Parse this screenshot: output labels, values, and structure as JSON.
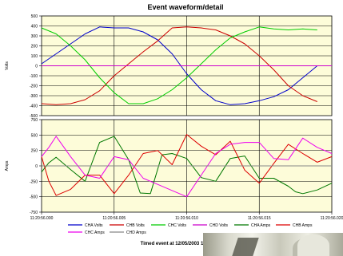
{
  "chart_data": {
    "type": "line",
    "title": "Event waveform/detail",
    "footer": "Timed event at 12/05/2003 11:20:56.000",
    "x_ticks": [
      "11:20:56.000",
      "11:20:56.005",
      "11:20:56.010",
      "11:20:56.015",
      "11:20:56.020"
    ],
    "xlim": [
      0,
      20
    ],
    "x_unit": "ms after 11:20:56.000",
    "grid": true,
    "legend_position": "bottom",
    "panels": [
      {
        "ylabel": "Volts",
        "ylim": [
          -500,
          500
        ],
        "y_ticks": [
          -500,
          -400,
          -300,
          -200,
          -100,
          0,
          100,
          200,
          300,
          400,
          500
        ],
        "series": [
          {
            "name": "CHA Volts",
            "color": "#0000cc",
            "x": [
              0,
              1,
              2,
              3,
              4,
              5,
              6,
              7,
              8,
              9,
              10,
              11,
              12,
              13,
              14,
              15,
              16,
              17,
              18,
              19,
              20
            ],
            "y": [
              20,
              120,
              220,
              320,
              390,
              380,
              380,
              340,
              260,
              120,
              -80,
              -240,
              -350,
              -390,
              -380,
              -350,
              -310,
              -240,
              -120,
              0,
              null
            ]
          },
          {
            "name": "CHB Volts",
            "color": "#cc0000",
            "x": [
              0,
              1,
              2,
              3,
              4,
              5,
              6,
              7,
              8,
              9,
              10,
              11,
              12,
              13,
              14,
              15,
              16,
              17,
              18,
              19,
              20
            ],
            "y": [
              -380,
              -390,
              -380,
              -340,
              -250,
              -100,
              20,
              140,
              250,
              380,
              390,
              380,
              360,
              300,
              220,
              100,
              -40,
              -200,
              -300,
              -360,
              null
            ]
          },
          {
            "name": "CHC Volts",
            "color": "#00cc00",
            "x": [
              0,
              1,
              2,
              3,
              4,
              5,
              6,
              7,
              8,
              9,
              10,
              11,
              12,
              13,
              14,
              15,
              16,
              17,
              18,
              19,
              20
            ],
            "y": [
              380,
              320,
              200,
              60,
              -120,
              -270,
              -380,
              -380,
              -330,
              -240,
              -120,
              20,
              160,
              280,
              340,
              390,
              370,
              360,
              370,
              360,
              null
            ]
          },
          {
            "name": "CHD Volts",
            "color": "#cc00cc",
            "x": [
              0,
              20
            ],
            "y": [
              0,
              0
            ]
          }
        ]
      },
      {
        "ylabel": "Amps",
        "ylim": [
          -750,
          750
        ],
        "y_ticks": [
          -750,
          -500,
          -250,
          0,
          250,
          500,
          750
        ],
        "series": [
          {
            "name": "CHA Amps",
            "color": "#007700",
            "x": [
              0,
              0.5,
              1,
              2,
              3,
              4,
              5,
              6,
              6.8,
              7.5,
              8.3,
              9,
              10,
              11,
              12,
              13,
              14,
              15,
              16,
              17,
              17.5,
              18,
              19,
              20
            ],
            "y": [
              -100,
              50,
              140,
              -60,
              -250,
              380,
              480,
              100,
              -440,
              -450,
              180,
              200,
              120,
              -190,
              -250,
              120,
              160,
              -200,
              -200,
              -330,
              -420,
              -450,
              -390,
              -280
            ]
          },
          {
            "name": "CHB Amps",
            "color": "#dd0000",
            "x": [
              0,
              0.5,
              1,
              2,
              3,
              4,
              5,
              6,
              7,
              8,
              9,
              10,
              11,
              12,
              13,
              14,
              15,
              16,
              17,
              18,
              19,
              20
            ],
            "y": [
              150,
              -250,
              -480,
              -380,
              -150,
              -150,
              -450,
              -150,
              200,
              250,
              20,
              510,
              320,
              180,
              400,
              -70,
              -280,
              40,
              350,
              200,
              60,
              150
            ]
          },
          {
            "name": "CHC Amps",
            "color": "#ee00ee",
            "x": [
              0,
              0.5,
              1,
              2,
              3,
              4,
              5,
              6,
              7,
              8,
              9,
              10,
              11,
              12,
              13,
              14,
              15,
              16,
              17,
              18,
              19,
              20
            ],
            "y": [
              150,
              300,
              480,
              150,
              -150,
              -200,
              150,
              100,
              -200,
              -300,
              -400,
              -500,
              -150,
              200,
              350,
              380,
              380,
              120,
              100,
              450,
              300,
              200
            ]
          },
          {
            "name": "CHD Amps",
            "color": "#888888",
            "x": [
              0,
              20
            ],
            "y": [
              0,
              0
            ]
          }
        ]
      }
    ]
  }
}
